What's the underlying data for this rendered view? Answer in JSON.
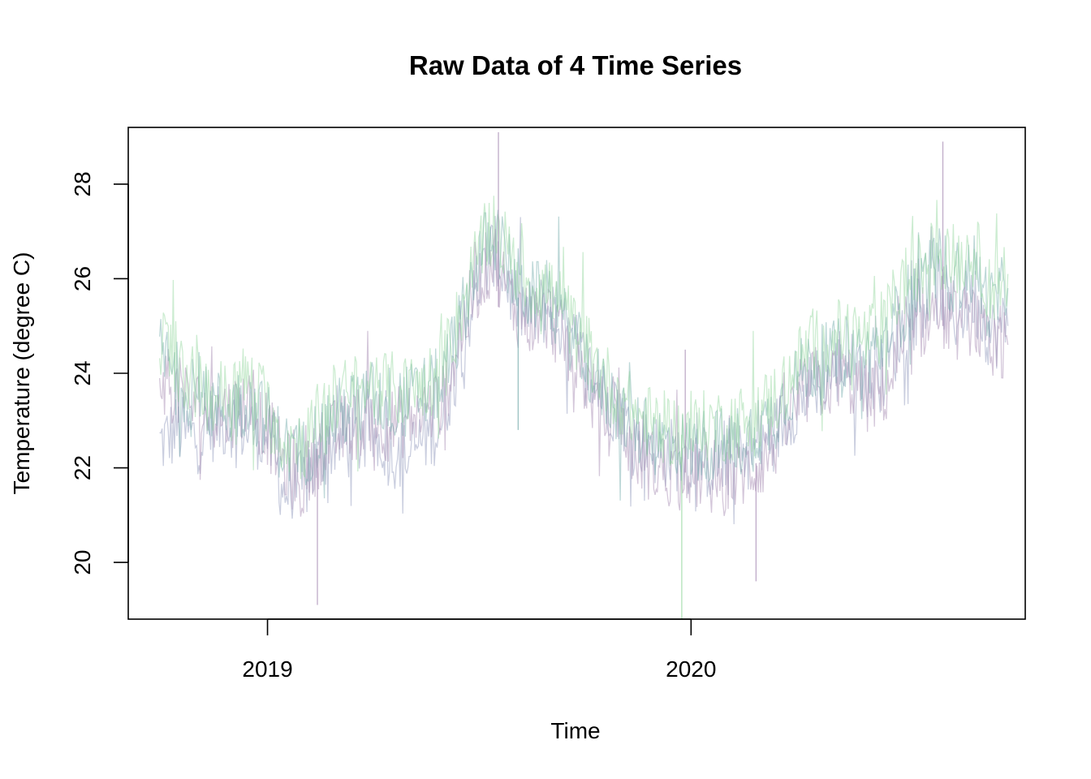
{
  "chart_data": {
    "type": "line",
    "title": "Raw Data of 4 Time Series",
    "xlabel": "Time",
    "ylabel": "Temperature (degree C)",
    "x_ticks": [
      "2019",
      "2020"
    ],
    "y_ticks": [
      20,
      22,
      24,
      26,
      28
    ],
    "xlim": [
      "2018-09-03",
      "2020-10-15"
    ],
    "ylim": [
      18.8,
      29.2
    ],
    "grid": false,
    "legend": "none",
    "x_format": "date",
    "series": [
      {
        "color": "#9ea6c4",
        "opacity": 0.55,
        "x": [
          "2018-09-30",
          "2018-10-15",
          "2018-11-01",
          "2018-11-15",
          "2018-12-01",
          "2018-12-15",
          "2019-01-01",
          "2019-01-15",
          "2019-02-01",
          "2019-02-15",
          "2019-03-01",
          "2019-03-15",
          "2019-04-01",
          "2019-04-15",
          "2019-05-01",
          "2019-05-15",
          "2019-06-01",
          "2019-06-15",
          "2019-07-01",
          "2019-07-15",
          "2019-08-01",
          "2019-08-15",
          "2019-09-01",
          "2019-09-15",
          "2019-10-01",
          "2019-10-15",
          "2019-11-01",
          "2019-11-15",
          "2019-12-01",
          "2019-12-15",
          "2020-01-01",
          "2020-01-15",
          "2020-02-01",
          "2020-02-15",
          "2020-03-01",
          "2020-03-15",
          "2020-04-01",
          "2020-04-15",
          "2020-05-01",
          "2020-05-15",
          "2020-06-01",
          "2020-06-15",
          "2020-07-01",
          "2020-07-15",
          "2020-08-01",
          "2020-08-15",
          "2020-09-01",
          "2020-09-15",
          "2020-09-30"
        ],
        "y": [
          22.5,
          22.8,
          22.6,
          22.9,
          23.0,
          22.8,
          22.7,
          21.5,
          21.6,
          22.2,
          22.6,
          22.5,
          22.7,
          22.4,
          22.2,
          22.6,
          23.0,
          24.5,
          25.8,
          26.6,
          25.6,
          25.2,
          25.4,
          24.8,
          24.2,
          23.6,
          23.2,
          22.6,
          22.4,
          22.3,
          22.2,
          22.1,
          22.1,
          22.3,
          22.4,
          22.8,
          23.4,
          23.7,
          24.0,
          24.2,
          23.8,
          24.0,
          24.9,
          25.4,
          25.8,
          25.2,
          25.6,
          24.8,
          25.0
        ]
      },
      {
        "color": "#a98fb6",
        "opacity": 0.5,
        "x": [
          "2018-09-30",
          "2018-10-15",
          "2018-11-01",
          "2018-11-15",
          "2018-12-01",
          "2018-12-15",
          "2019-01-01",
          "2019-01-15",
          "2019-02-01",
          "2019-02-15",
          "2019-03-01",
          "2019-03-15",
          "2019-04-01",
          "2019-04-15",
          "2019-05-01",
          "2019-05-15",
          "2019-06-01",
          "2019-06-15",
          "2019-07-01",
          "2019-07-15",
          "2019-08-01",
          "2019-08-15",
          "2019-09-01",
          "2019-09-15",
          "2019-10-01",
          "2019-10-15",
          "2019-11-01",
          "2019-11-15",
          "2019-12-01",
          "2019-12-15",
          "2020-01-01",
          "2020-01-15",
          "2020-02-01",
          "2020-02-15",
          "2020-03-01",
          "2020-03-15",
          "2020-04-01",
          "2020-04-15",
          "2020-05-01",
          "2020-05-15",
          "2020-06-01",
          "2020-06-15",
          "2020-07-01",
          "2020-07-15",
          "2020-08-01",
          "2020-08-15",
          "2020-09-01",
          "2020-09-15",
          "2020-09-30"
        ],
        "y": [
          24.0,
          23.6,
          23.3,
          23.1,
          23.2,
          23.4,
          22.8,
          22.1,
          21.6,
          22.4,
          22.7,
          22.9,
          23.1,
          22.9,
          23.0,
          23.2,
          23.4,
          24.7,
          25.9,
          26.5,
          25.4,
          25.1,
          25.2,
          24.6,
          23.9,
          23.2,
          22.8,
          22.3,
          22.0,
          21.9,
          21.9,
          21.8,
          21.7,
          21.9,
          22.1,
          22.6,
          23.3,
          23.8,
          23.8,
          23.9,
          23.5,
          23.6,
          24.4,
          25.0,
          25.4,
          25.0,
          25.2,
          24.3,
          24.6
        ]
      },
      {
        "color": "#6fa8a8",
        "opacity": 0.45,
        "x": [
          "2018-09-30",
          "2018-10-15",
          "2018-11-01",
          "2018-11-15",
          "2018-12-01",
          "2018-12-15",
          "2019-01-01",
          "2019-01-15",
          "2019-02-01",
          "2019-02-15",
          "2019-03-01",
          "2019-03-15",
          "2019-04-01",
          "2019-04-15",
          "2019-05-01",
          "2019-05-15",
          "2019-06-01",
          "2019-06-15",
          "2019-07-01",
          "2019-07-15",
          "2019-08-01",
          "2019-08-15",
          "2019-09-01",
          "2019-09-15",
          "2019-10-01",
          "2019-10-15",
          "2019-11-01",
          "2019-11-15",
          "2019-12-01",
          "2019-12-15",
          "2020-01-01",
          "2020-01-15",
          "2020-02-01",
          "2020-02-15",
          "2020-03-01",
          "2020-03-15",
          "2020-04-01",
          "2020-04-15",
          "2020-05-01",
          "2020-05-15",
          "2020-06-01",
          "2020-06-15",
          "2020-07-01",
          "2020-07-15",
          "2020-08-01",
          "2020-08-15",
          "2020-09-01",
          "2020-09-15",
          "2020-09-30"
        ],
        "y": [
          24.5,
          23.9,
          23.5,
          23.3,
          23.3,
          23.4,
          23.0,
          22.4,
          22.3,
          22.8,
          23.1,
          23.3,
          23.5,
          23.4,
          23.4,
          23.6,
          23.8,
          25.0,
          26.4,
          27.0,
          26.0,
          25.6,
          25.6,
          25.0,
          24.3,
          23.7,
          23.2,
          22.8,
          22.6,
          22.5,
          22.4,
          22.5,
          22.5,
          22.6,
          22.8,
          23.2,
          23.9,
          24.2,
          24.3,
          24.5,
          24.3,
          24.6,
          25.4,
          25.8,
          26.3,
          26.0,
          26.2,
          25.4,
          25.8
        ]
      },
      {
        "color": "#8ed49a",
        "opacity": 0.45,
        "x": [
          "2018-09-30",
          "2018-10-15",
          "2018-11-01",
          "2018-11-15",
          "2018-12-01",
          "2018-12-15",
          "2019-01-01",
          "2019-01-15",
          "2019-02-01",
          "2019-02-15",
          "2019-03-01",
          "2019-03-15",
          "2019-04-01",
          "2019-04-15",
          "2019-05-01",
          "2019-05-15",
          "2019-06-01",
          "2019-06-15",
          "2019-07-01",
          "2019-07-15",
          "2019-08-01",
          "2019-08-15",
          "2019-09-01",
          "2019-09-15",
          "2019-10-01",
          "2019-10-15",
          "2019-11-01",
          "2019-11-15",
          "2019-12-01",
          "2019-12-15",
          "2020-01-01",
          "2020-01-15",
          "2020-02-01",
          "2020-02-15",
          "2020-03-01",
          "2020-03-15",
          "2020-04-01",
          "2020-04-15",
          "2020-05-01",
          "2020-05-15",
          "2020-06-01",
          "2020-06-15",
          "2020-07-01",
          "2020-07-15",
          "2020-08-01",
          "2020-08-15",
          "2020-09-01",
          "2020-09-15",
          "2020-09-30"
        ],
        "y": [
          24.8,
          24.2,
          23.7,
          23.5,
          23.6,
          23.9,
          23.2,
          22.6,
          22.5,
          23.1,
          23.5,
          23.6,
          23.7,
          23.7,
          23.6,
          23.8,
          24.0,
          25.2,
          26.5,
          27.2,
          26.3,
          25.9,
          25.8,
          25.2,
          24.6,
          24.0,
          23.5,
          23.1,
          22.9,
          22.8,
          22.7,
          22.9,
          22.9,
          23.0,
          23.2,
          23.5,
          24.2,
          24.6,
          24.7,
          24.9,
          24.7,
          25.0,
          25.9,
          26.2,
          26.6,
          26.4,
          26.6,
          25.8,
          26.1
        ]
      }
    ],
    "spikes": [
      {
        "x": "2019-02-13",
        "y": 19.1,
        "series": 1
      },
      {
        "x": "2019-12-24",
        "y": 18.8,
        "series": 3
      },
      {
        "x": "2020-02-26",
        "y": 19.6,
        "series": 1
      },
      {
        "x": "2019-07-19",
        "y": 29.1,
        "series": 1
      },
      {
        "x": "2020-08-05",
        "y": 28.9,
        "series": 1
      },
      {
        "x": "2019-12-27",
        "y": 24.5,
        "series": 1
      },
      {
        "x": "2019-08-05",
        "y": 22.8,
        "series": 2
      }
    ]
  }
}
